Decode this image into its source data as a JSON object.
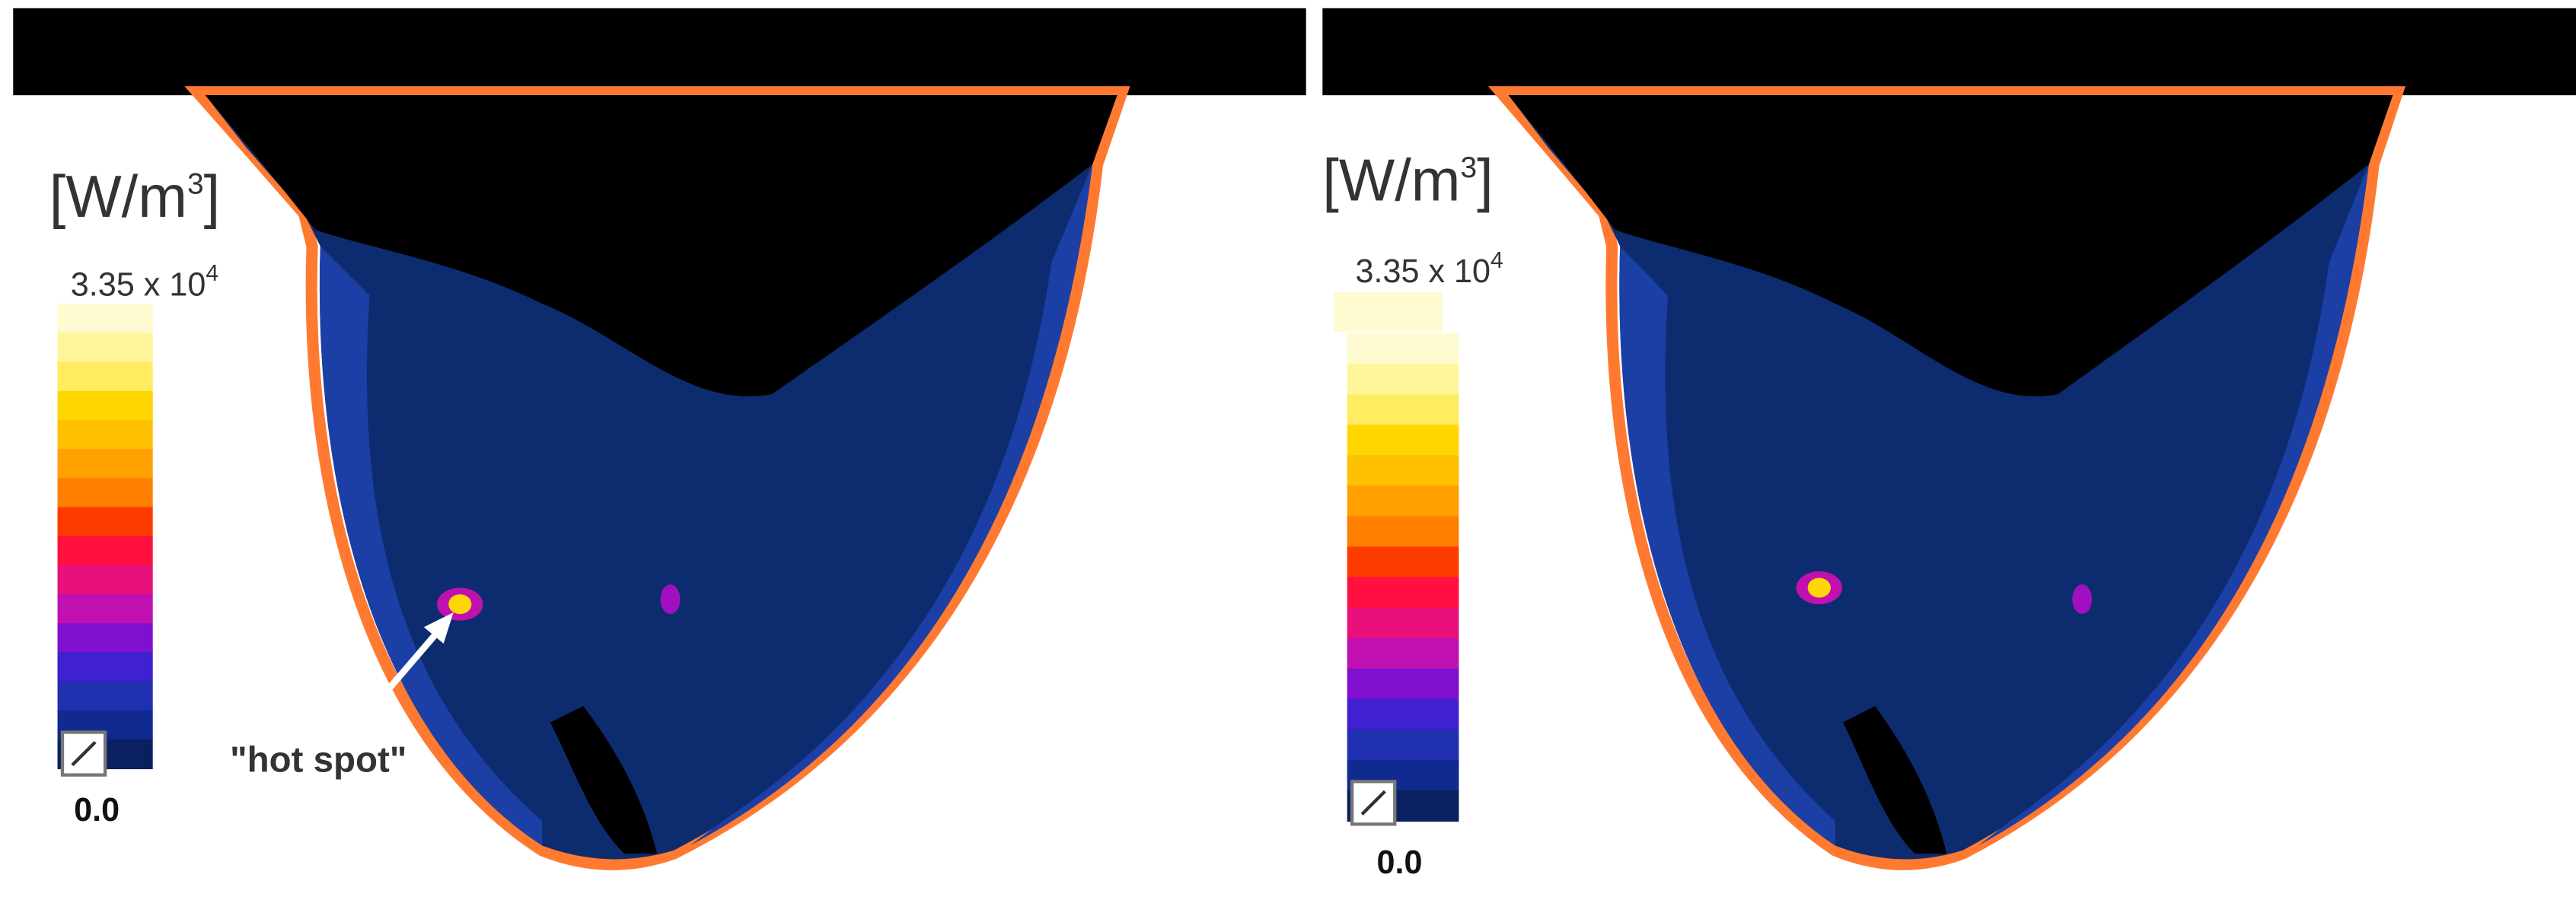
{
  "panels": [
    {
      "unit": {
        "base": "[W/m",
        "exponent": "3",
        "close": "]"
      },
      "max_label": {
        "mantissa": "3.35 x 10",
        "exponent": "4"
      },
      "min_label": "0.0",
      "annotation": "\"hot spot\""
    },
    {
      "unit": {
        "base": "[W/m",
        "exponent": "3",
        "close": "]"
      },
      "max_label": {
        "mantissa": "3.35 x 10",
        "exponent": "4"
      },
      "min_label": "0.0"
    }
  ],
  "colorbar_colors": [
    "#fffbd0",
    "#fff59a",
    "#ffec60",
    "#ffd700",
    "#ffc000",
    "#ffa000",
    "#ff7f00",
    "#ff3c00",
    "#ff1040",
    "#e8107a",
    "#c010b0",
    "#8010d0",
    "#4020d0",
    "#2030b0",
    "#102a90",
    "#0a2060"
  ]
}
